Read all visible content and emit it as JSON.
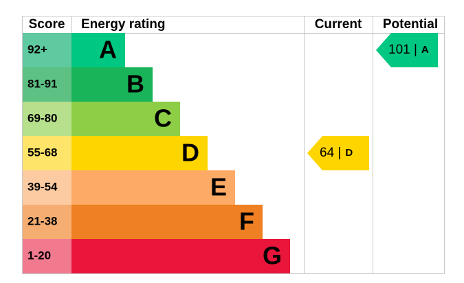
{
  "header": {
    "score": "Score",
    "rating": "Energy rating",
    "current": "Current",
    "potential": "Potential"
  },
  "bands": [
    {
      "score": "92+",
      "letter": "A",
      "color": "#00c781",
      "score_color": "#5fc99f"
    },
    {
      "score": "81-91",
      "letter": "B",
      "color": "#19b459",
      "score_color": "#5dc184"
    },
    {
      "score": "69-80",
      "letter": "C",
      "color": "#8dce46",
      "score_color": "#b7e08d"
    },
    {
      "score": "55-68",
      "letter": "D",
      "color": "#ffd500",
      "score_color": "#ffe46a"
    },
    {
      "score": "39-54",
      "letter": "E",
      "color": "#fcaa65",
      "score_color": "#fdcba2"
    },
    {
      "score": "21-38",
      "letter": "F",
      "color": "#ef8023",
      "score_color": "#f5ad72"
    },
    {
      "score": "1-20",
      "letter": "G",
      "color": "#e9153b",
      "score_color": "#f27a8f"
    }
  ],
  "current": {
    "label": "64 |",
    "rating": "D",
    "band": 3,
    "color": "#ffd500"
  },
  "potential": {
    "label": "101 |",
    "rating": "A",
    "band": 0,
    "color": "#00c781"
  }
}
